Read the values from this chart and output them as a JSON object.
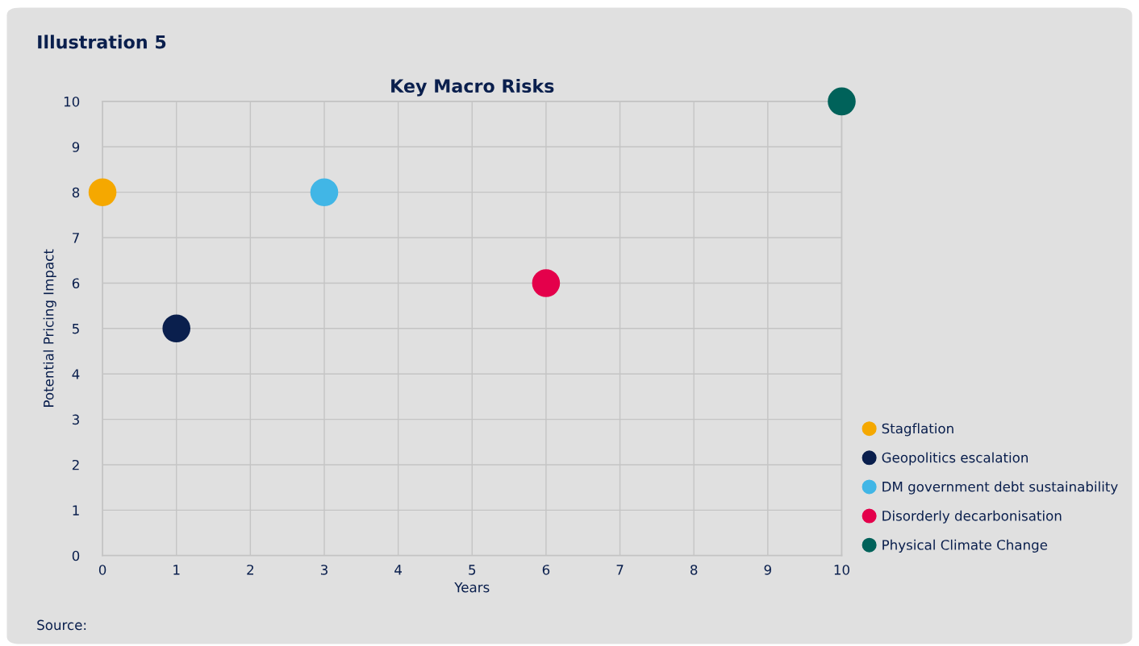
{
  "chart_data": {
    "type": "scatter",
    "title": "Key Macro Risks",
    "xlabel": "Years",
    "ylabel": "Potential Pricing Impact",
    "annotations": [
      "Illustration 5",
      "Source:"
    ],
    "series": [
      {
        "name": "Stagflation",
        "color": "#f5a800",
        "x": [
          0
        ],
        "values": [
          8
        ]
      },
      {
        "name": "Geopolitics escalation",
        "color": "#0a1f4d",
        "x": [
          1
        ],
        "values": [
          5
        ]
      },
      {
        "name": "DM government debt sustainability",
        "color": "#41b6e6",
        "x": [
          3
        ],
        "values": [
          8
        ]
      },
      {
        "name": "Disorderly decarbonisation",
        "color": "#e4004b",
        "x": [
          6
        ],
        "values": [
          6
        ]
      },
      {
        "name": "Physical Climate Change",
        "color": "#00625a",
        "x": [
          10
        ],
        "values": [
          10
        ]
      }
    ],
    "xlim": [
      0,
      10
    ],
    "xticks": [
      0,
      1,
      2,
      3,
      4,
      5,
      6,
      7,
      8,
      9,
      10
    ],
    "ylim": [
      0,
      10
    ],
    "yticks": [
      0,
      1,
      2,
      3,
      4,
      5,
      6,
      7,
      8,
      9,
      10
    ],
    "grid": true,
    "legend": "right",
    "marker": "circle"
  }
}
